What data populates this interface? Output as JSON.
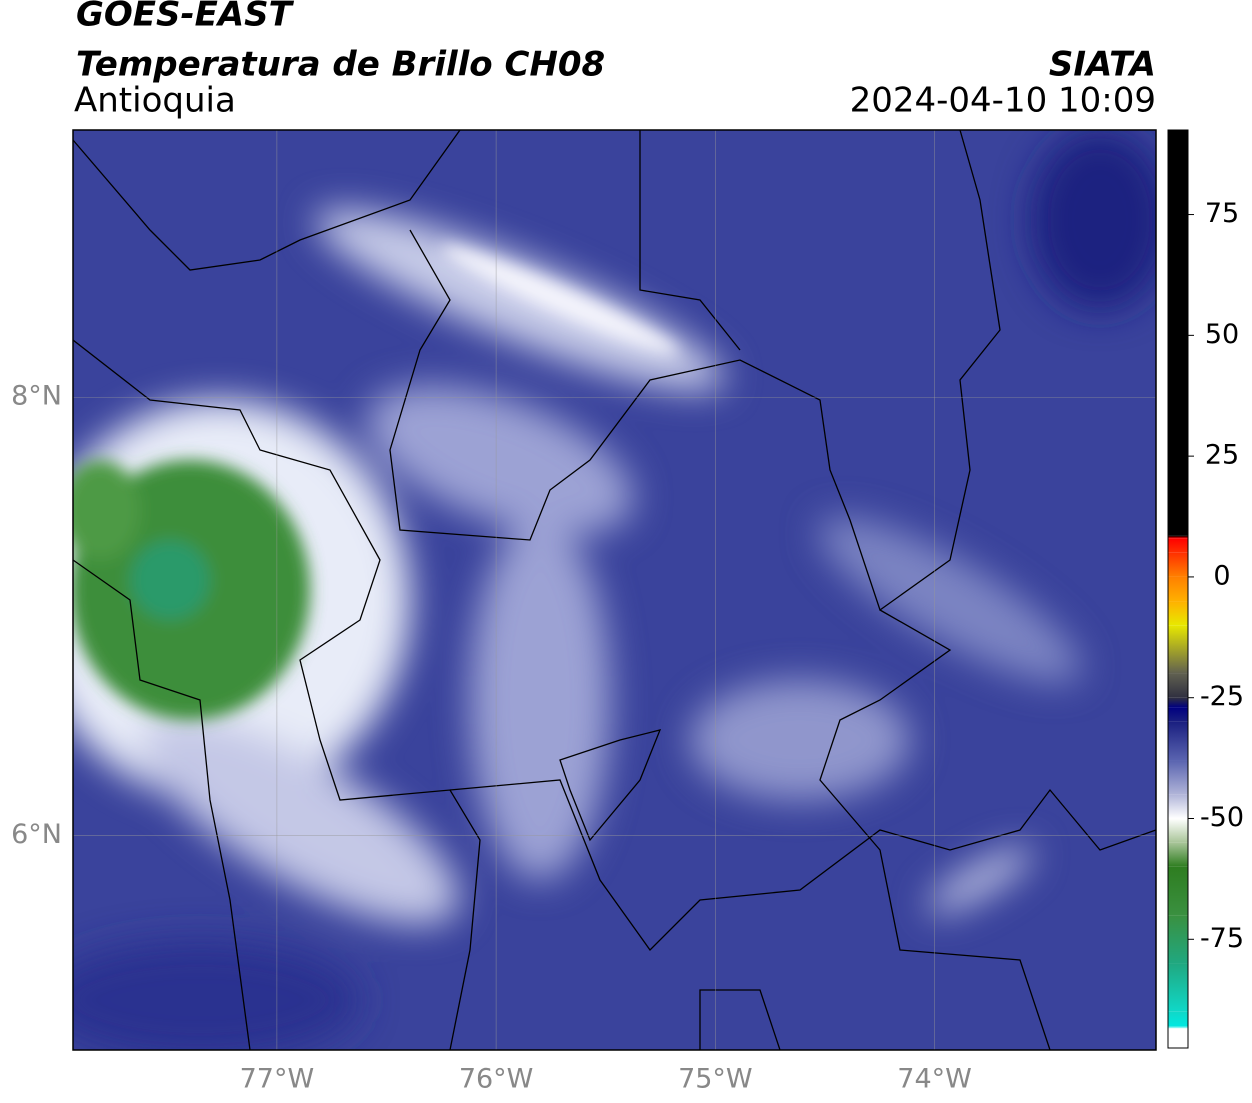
{
  "header": {
    "satellite": "GOES-EAST",
    "product": "Temperatura de Brillo CH08",
    "region": "Antioquia",
    "source": "SIATA",
    "datetime": "2024-04-10 10:09"
  },
  "map": {
    "xlim": [
      -77.93,
      -72.99
    ],
    "ylim": [
      5.02,
      9.22
    ],
    "xticks": [
      {
        "value": -77,
        "label": "77°W"
      },
      {
        "value": -76,
        "label": "76°W"
      },
      {
        "value": -75,
        "label": "75°W"
      },
      {
        "value": -74,
        "label": "74°W"
      }
    ],
    "yticks": [
      {
        "value": 6,
        "label": "6°N"
      },
      {
        "value": 8,
        "label": "8°N"
      }
    ],
    "grid": true
  },
  "colorbar": {
    "clim": [
      -97.5,
      92.5
    ],
    "ticks": [
      -75,
      -50,
      -25,
      0,
      25,
      50,
      75
    ],
    "colormap": [
      {
        "value": -97.5,
        "color": "#ffffff"
      },
      {
        "value": -93.5,
        "color": "#ffffff"
      },
      {
        "value": -93,
        "color": "#00e8e0"
      },
      {
        "value": -90,
        "color": "#10d8c8"
      },
      {
        "value": -80,
        "color": "#20a880"
      },
      {
        "value": -70,
        "color": "#3a9040"
      },
      {
        "value": -60,
        "color": "#2e7d20"
      },
      {
        "value": -55,
        "color": "#a8c498"
      },
      {
        "value": -50,
        "color": "#ffffff"
      },
      {
        "value": -45,
        "color": "#b0b4d8"
      },
      {
        "value": -38,
        "color": "#5a64b0"
      },
      {
        "value": -30,
        "color": "#1a1f80"
      },
      {
        "value": -27,
        "color": "#000080"
      },
      {
        "value": -25,
        "color": "#303040"
      },
      {
        "value": -20,
        "color": "#606050"
      },
      {
        "value": -10,
        "color": "#e8e800"
      },
      {
        "value": -5,
        "color": "#ffb000"
      },
      {
        "value": 0,
        "color": "#ff8000"
      },
      {
        "value": 5,
        "color": "#ff3000"
      },
      {
        "value": 8,
        "color": "#ff0000"
      },
      {
        "value": 8.5,
        "color": "#000000"
      },
      {
        "value": 92.5,
        "color": "#000000"
      }
    ]
  }
}
